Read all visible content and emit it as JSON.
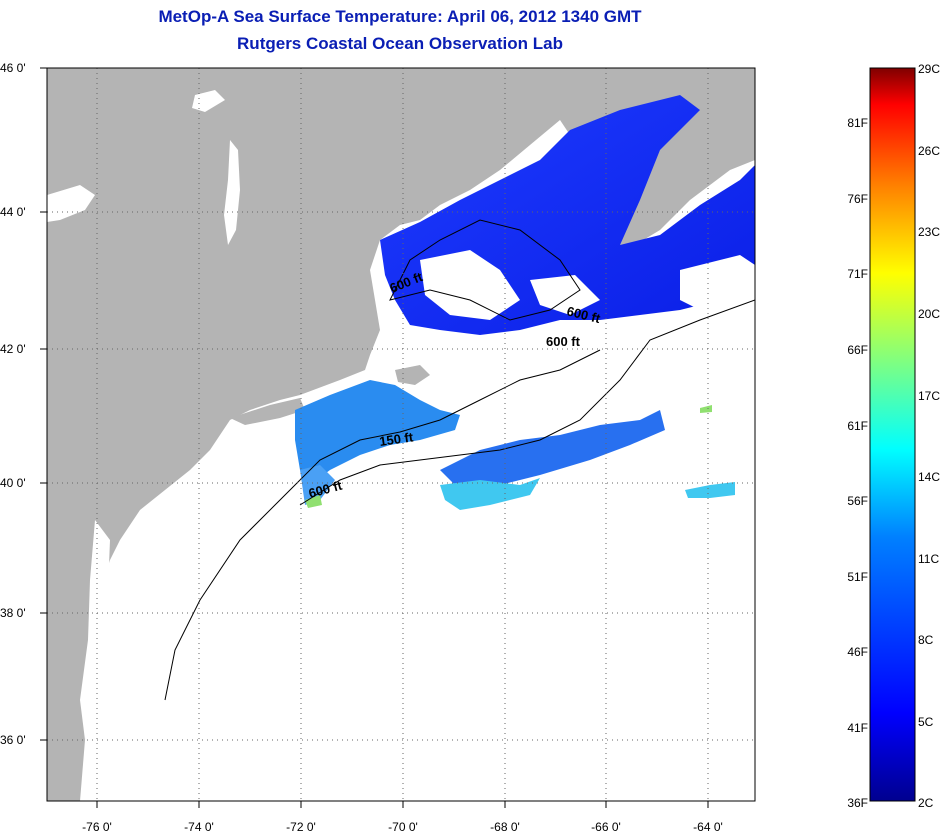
{
  "title_line1": "MetOp-A Sea Surface Temperature:  April 06, 2012 1340 GMT",
  "title_line2": "Rutgers Coastal Ocean Observation Lab",
  "lat_labels": [
    "46 0'",
    "44 0'",
    "42 0'",
    "40 0'",
    "38 0'",
    "36 0'"
  ],
  "lon_labels": [
    "-76 0'",
    "-74 0'",
    "-72 0'",
    "-70 0'",
    "-68 0'",
    "-66 0'",
    "-64 0'"
  ],
  "contour_labels": [
    "600 ft",
    "600 ft",
    "600 ft",
    "150 ft",
    "600 ft"
  ],
  "colorbar": {
    "fahrenheit": [
      "81F",
      "76F",
      "71F",
      "66F",
      "61F",
      "56F",
      "51F",
      "46F",
      "41F",
      "36F"
    ],
    "celsius": [
      "29C",
      "26C",
      "23C",
      "20C",
      "17C",
      "14C",
      "11C",
      "8C",
      "5C",
      "2C"
    ],
    "colors": [
      "#7f0000",
      "#ff0000",
      "#ff8000",
      "#ffff00",
      "#80ff80",
      "#00ffff",
      "#0080ff",
      "#0000ff",
      "#00008f"
    ]
  },
  "colors": {
    "land": "#b4b4b4",
    "ocean_cloud": "#ffffff",
    "title": "#0a1eb4"
  }
}
